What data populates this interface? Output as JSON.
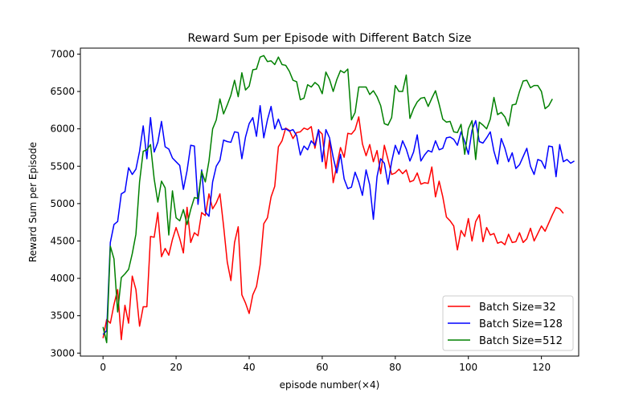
{
  "chart_data": {
    "type": "line",
    "title": "Reward Sum per Episode with Different Batch Size",
    "xlabel": "episode number(×4)",
    "ylabel": "Reward Sum per Episode",
    "xlim": [
      -6.2,
      130.2
    ],
    "ylim": [
      2960,
      7080
    ],
    "xticks": [
      0,
      20,
      40,
      60,
      80,
      100,
      120
    ],
    "yticks": [
      3000,
      3500,
      4000,
      4500,
      5000,
      5500,
      6000,
      6500,
      7000
    ],
    "grid": false,
    "legend_position": "lower-right",
    "series": [
      {
        "name": "Batch Size=32",
        "color": "#ff0000",
        "values": [
          3200,
          3450,
          3400,
          3650,
          3850,
          3180,
          3640,
          3400,
          4030,
          3850,
          3360,
          3620,
          3620,
          4560,
          4550,
          4880,
          4290,
          4400,
          4310,
          4520,
          4680,
          4530,
          4340,
          4950,
          4480,
          4610,
          4570,
          4880,
          4840,
          5130,
          4930,
          5010,
          5130,
          4700,
          4220,
          3970,
          4480,
          4690,
          3780,
          3670,
          3530,
          3780,
          3890,
          4180,
          4730,
          4810,
          5090,
          5230,
          5760,
          5840,
          6010,
          5980,
          5870,
          5950,
          5960,
          6010,
          5990,
          6030,
          5740,
          5980,
          5930,
          5470,
          5850,
          5280,
          5510,
          5750,
          5620,
          5940,
          5930,
          5990,
          6160,
          5800,
          5640,
          5790,
          5560,
          5710,
          5400,
          5780,
          5590,
          5390,
          5410,
          5460,
          5400,
          5450,
          5290,
          5310,
          5410,
          5260,
          5280,
          5270,
          5490,
          5090,
          5300,
          5090,
          4820,
          4770,
          4700,
          4380,
          4640,
          4560,
          4800,
          4500,
          4760,
          4850,
          4490,
          4680,
          4580,
          4600,
          4470,
          4490,
          4450,
          4590,
          4480,
          4490,
          4610,
          4480,
          4530,
          4670,
          4500,
          4600,
          4700,
          4630,
          4740,
          4850,
          4950,
          4930,
          4870
        ]
      },
      {
        "name": "Batch Size=128",
        "color": "#0000ff",
        "values": [
          3250,
          3300,
          4480,
          4720,
          4760,
          5130,
          5160,
          5480,
          5390,
          5460,
          5700,
          6040,
          5600,
          6150,
          5690,
          5820,
          6100,
          5760,
          5730,
          5610,
          5560,
          5510,
          5190,
          5440,
          5780,
          5770,
          4990,
          5450,
          4890,
          4830,
          5290,
          5500,
          5580,
          5850,
          5830,
          5820,
          5960,
          5950,
          5600,
          5890,
          6070,
          6150,
          5900,
          6310,
          5880,
          6120,
          6300,
          6000,
          6130,
          5990,
          6000,
          5970,
          5990,
          5910,
          5650,
          5770,
          5720,
          5840,
          5780,
          5990,
          5560,
          5990,
          5880,
          5620,
          5410,
          5660,
          5330,
          5200,
          5220,
          5420,
          5290,
          5110,
          5450,
          5250,
          4790,
          5360,
          5600,
          5540,
          5260,
          5560,
          5780,
          5660,
          5840,
          5730,
          5570,
          5690,
          5920,
          5570,
          5650,
          5710,
          5690,
          5840,
          5720,
          5740,
          5880,
          5890,
          5860,
          5780,
          5960,
          5830,
          5660,
          5980,
          6110,
          5830,
          5810,
          5880,
          5960,
          5700,
          5530,
          5870,
          5740,
          5560,
          5680,
          5470,
          5520,
          5630,
          5740,
          5500,
          5390,
          5590,
          5570,
          5470,
          5770,
          5760,
          5360,
          5790,
          5560,
          5590,
          5540,
          5570
        ]
      },
      {
        "name": "Batch Size=512",
        "color": "#008000",
        "values": [
          3350,
          3140,
          4430,
          4260,
          3550,
          4010,
          4060,
          4120,
          4330,
          4590,
          5290,
          5700,
          5720,
          5790,
          5330,
          5020,
          5300,
          5210,
          4580,
          5170,
          4810,
          4770,
          4920,
          4720,
          4920,
          5080,
          5070,
          5430,
          5290,
          5570,
          6000,
          6120,
          6400,
          6200,
          6320,
          6450,
          6650,
          6430,
          6750,
          6520,
          6570,
          6790,
          6800,
          6960,
          6980,
          6900,
          6910,
          6860,
          6960,
          6860,
          6850,
          6770,
          6650,
          6630,
          6390,
          6410,
          6590,
          6560,
          6620,
          6580,
          6470,
          6760,
          6660,
          6500,
          6660,
          6780,
          6750,
          6800,
          6120,
          6220,
          6560,
          6560,
          6560,
          6460,
          6510,
          6430,
          6310,
          6070,
          6050,
          6150,
          6580,
          6500,
          6500,
          6720,
          6140,
          6270,
          6360,
          6410,
          6420,
          6300,
          6410,
          6510,
          6330,
          6130,
          6090,
          6100,
          5960,
          5950,
          6060,
          5660,
          6000,
          6110,
          5590,
          6090,
          6050,
          6000,
          6130,
          6420,
          6190,
          6220,
          6160,
          6040,
          6320,
          6330,
          6500,
          6640,
          6650,
          6550,
          6580,
          6580,
          6500,
          6270,
          6310,
          6400
        ]
      }
    ]
  }
}
